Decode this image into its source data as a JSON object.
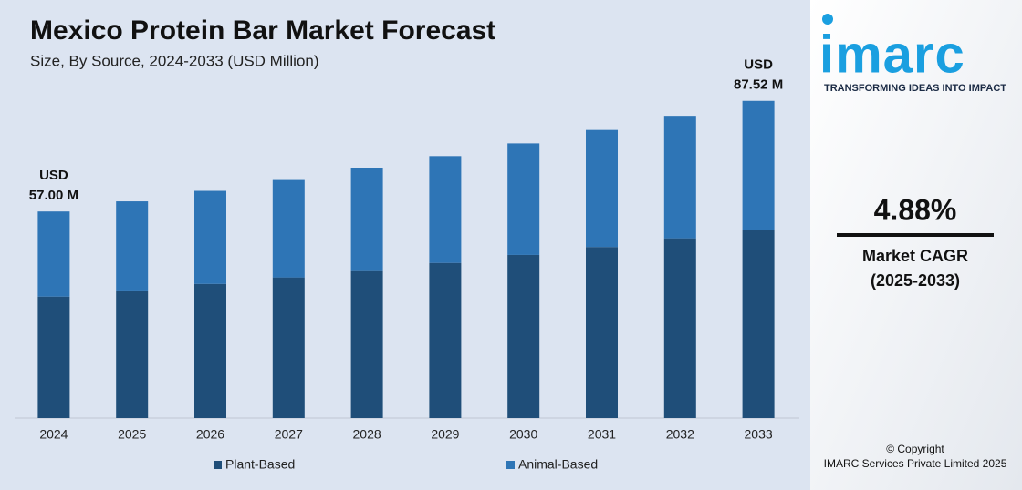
{
  "chart_data": {
    "type": "stacked_bar",
    "title": "Mexico Protein Bar Market Forecast",
    "subtitle": "Size, By Source, 2024-2033 (USD Million)",
    "categories": [
      "2024",
      "2025",
      "2026",
      "2027",
      "2028",
      "2029",
      "2030",
      "2031",
      "2032",
      "2033"
    ],
    "series": [
      {
        "name": "Plant-Based",
        "color": "#1f4e79",
        "values": [
          33.5,
          35.2,
          37.0,
          38.8,
          40.8,
          42.8,
          45.0,
          47.2,
          49.6,
          52.0
        ]
      },
      {
        "name": "Animal-Based",
        "color": "#2e75b6",
        "values": [
          23.5,
          24.6,
          25.7,
          26.9,
          28.1,
          29.5,
          30.8,
          32.3,
          33.8,
          35.52
        ]
      }
    ],
    "ylim": [
      0,
      95
    ],
    "legend": "bottom",
    "annotations": [
      {
        "category": "2024",
        "lines": [
          "USD",
          "57.00 M"
        ]
      },
      {
        "category": "2033",
        "lines": [
          "USD",
          "87.52 M"
        ]
      }
    ]
  },
  "panel": {
    "logo": "imarc",
    "tagline": "TRANSFORMING IDEAS INTO IMPACT",
    "cagr": "4.88%",
    "cagr_label": "Market CAGR",
    "cagr_period": "(2025-2033)",
    "copyright": "© Copyright",
    "company": "IMARC Services Private Limited 2025"
  }
}
